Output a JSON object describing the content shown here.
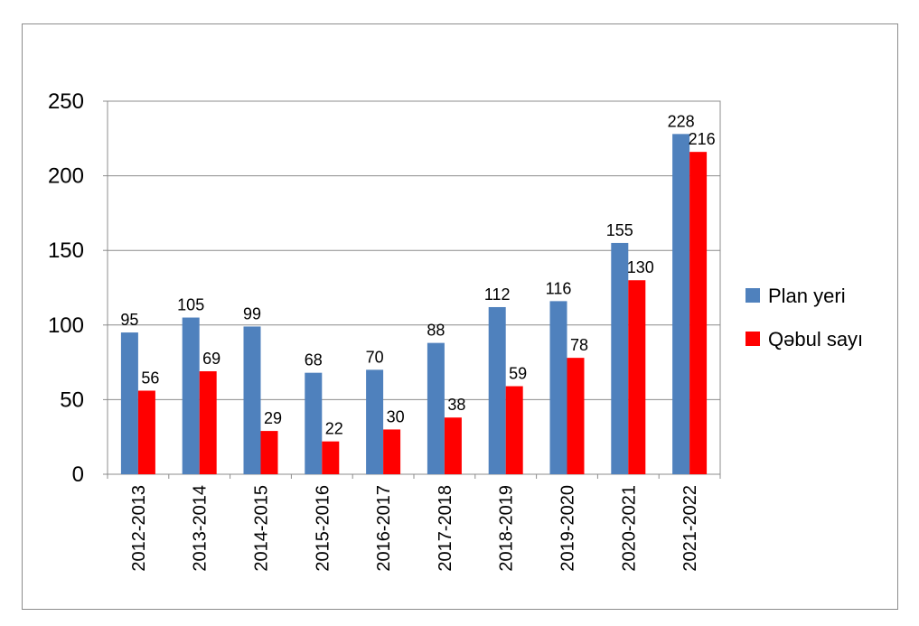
{
  "chart_data": {
    "type": "bar",
    "categories": [
      "2012-2013",
      "2013-2014",
      "2014-2015",
      "2015-2016",
      "2016-2017",
      "2017-2018",
      "2018-2019",
      "2019-2020",
      "2020-2021",
      "2021-2022"
    ],
    "series": [
      {
        "name": "Plan yeri",
        "color": "#4f81bd",
        "values": [
          95,
          105,
          99,
          68,
          70,
          88,
          112,
          116,
          155,
          228
        ]
      },
      {
        "name": "Qəbul sayı",
        "color": "#ff0000",
        "values": [
          56,
          69,
          29,
          22,
          30,
          38,
          59,
          78,
          130,
          216
        ]
      }
    ],
    "yticks": [
      0,
      50,
      100,
      150,
      200,
      250
    ],
    "ylim": [
      0,
      250
    ],
    "grid": true,
    "legend_position": "right",
    "title": "",
    "xlabel": "",
    "ylabel": ""
  }
}
